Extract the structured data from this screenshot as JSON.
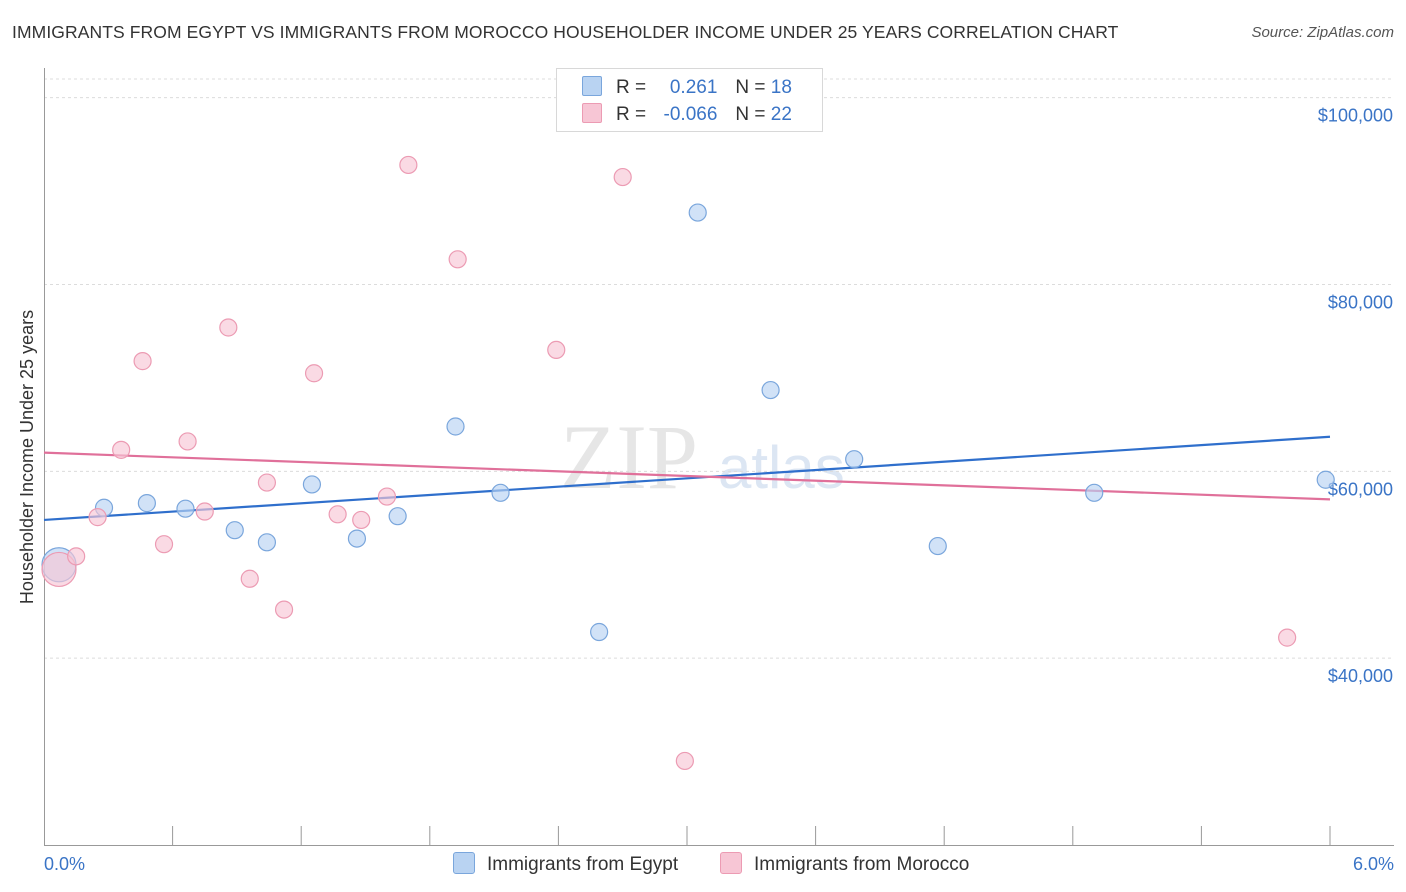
{
  "title": "IMMIGRANTS FROM EGYPT VS IMMIGRANTS FROM MOROCCO HOUSEHOLDER INCOME UNDER 25 YEARS CORRELATION CHART",
  "source": "Source: ZipAtlas.com",
  "watermark": {
    "zip": "ZIP",
    "atlas": "atlas"
  },
  "legend": {
    "egypt": {
      "r_label": "R =",
      "r_value": "0.261",
      "n_label": "N =",
      "n_value": "18"
    },
    "morocco": {
      "r_label": "R =",
      "r_value": "-0.066",
      "n_label": "N =",
      "n_value": "22"
    }
  },
  "colors": {
    "egypt_fill": "#b9d3f2",
    "egypt_stroke": "#7aa6dc",
    "egypt_line": "#2f6fcc",
    "morocco_fill": "#f7c6d5",
    "morocco_stroke": "#ec9bb3",
    "morocco_line": "#e0709a"
  },
  "chart_data": {
    "type": "scatter",
    "title": "IMMIGRANTS FROM EGYPT VS IMMIGRANTS FROM MOROCCO HOUSEHOLDER INCOME UNDER 25 YEARS CORRELATION CHART",
    "xlabel": "",
    "ylabel": "Householder Income Under 25 years",
    "xlim": [
      0,
      6
    ],
    "ylim": [
      20000,
      102000
    ],
    "x_tick_labels": [
      "0.0%",
      "6.0%"
    ],
    "y_ticks": [
      40000,
      60000,
      80000,
      100000
    ],
    "y_tick_labels": [
      "$40,000",
      "$60,000",
      "$80,000",
      "$100,000"
    ],
    "series": [
      {
        "name": "Immigrants from Egypt",
        "r": 0.261,
        "n": 18,
        "points": [
          {
            "x": 0.07,
            "y": 50000,
            "big": true
          },
          {
            "x": 0.28,
            "y": 56100
          },
          {
            "x": 0.48,
            "y": 56600
          },
          {
            "x": 0.66,
            "y": 56000
          },
          {
            "x": 0.89,
            "y": 53700
          },
          {
            "x": 1.04,
            "y": 52400
          },
          {
            "x": 1.25,
            "y": 58600
          },
          {
            "x": 1.46,
            "y": 52800
          },
          {
            "x": 1.65,
            "y": 55200
          },
          {
            "x": 1.92,
            "y": 64800
          },
          {
            "x": 2.13,
            "y": 57700
          },
          {
            "x": 2.59,
            "y": 42800
          },
          {
            "x": 3.05,
            "y": 87700
          },
          {
            "x": 3.39,
            "y": 68700
          },
          {
            "x": 3.78,
            "y": 61300
          },
          {
            "x": 4.17,
            "y": 52000
          },
          {
            "x": 4.9,
            "y": 57700
          },
          {
            "x": 5.98,
            "y": 59100
          }
        ],
        "trend": {
          "x": [
            0.0,
            6.0
          ],
          "y": [
            54800,
            63700
          ]
        }
      },
      {
        "name": "Immigrants from Morocco",
        "r": -0.066,
        "n": 22,
        "points": [
          {
            "x": 0.07,
            "y": 49500,
            "big": true
          },
          {
            "x": 0.15,
            "y": 50900
          },
          {
            "x": 0.25,
            "y": 55100
          },
          {
            "x": 0.36,
            "y": 62300
          },
          {
            "x": 0.46,
            "y": 71800
          },
          {
            "x": 0.56,
            "y": 52200
          },
          {
            "x": 0.67,
            "y": 63200
          },
          {
            "x": 0.75,
            "y": 55700
          },
          {
            "x": 0.86,
            "y": 75400
          },
          {
            "x": 0.96,
            "y": 48500
          },
          {
            "x": 1.04,
            "y": 58800
          },
          {
            "x": 1.12,
            "y": 45200
          },
          {
            "x": 1.26,
            "y": 70500
          },
          {
            "x": 1.37,
            "y": 55400
          },
          {
            "x": 1.48,
            "y": 54800
          },
          {
            "x": 1.6,
            "y": 57300
          },
          {
            "x": 1.7,
            "y": 92800
          },
          {
            "x": 1.93,
            "y": 82700
          },
          {
            "x": 2.39,
            "y": 73000
          },
          {
            "x": 2.7,
            "y": 91500
          },
          {
            "x": 2.99,
            "y": 29000
          },
          {
            "x": 5.8,
            "y": 42200
          }
        ],
        "trend": {
          "x": [
            0.0,
            6.0
          ],
          "y": [
            62000,
            57000
          ]
        }
      }
    ]
  }
}
